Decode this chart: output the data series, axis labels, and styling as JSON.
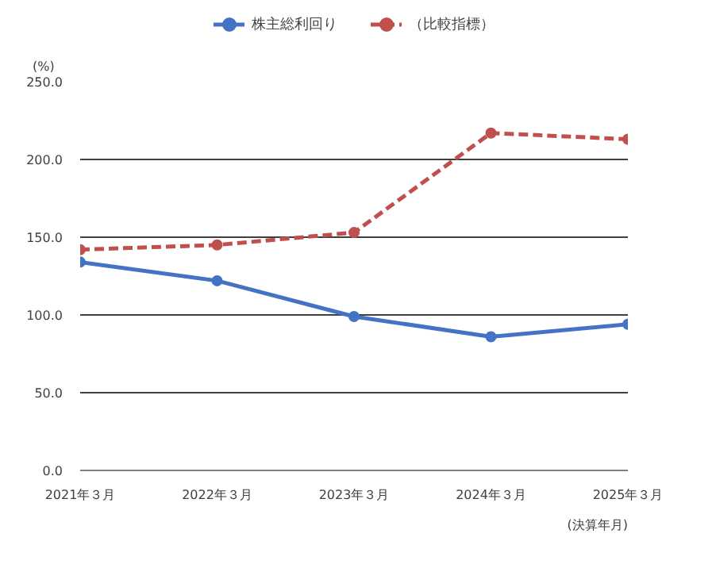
{
  "chart_data": {
    "type": "line",
    "ylabel": "(%)",
    "xlabel": "(決算年月)",
    "categories": [
      "2021年３月",
      "2022年３月",
      "2023年３月",
      "2024年３月",
      "2025年３月"
    ],
    "series": [
      {
        "name": "株主総利回り",
        "color": "#4472c4",
        "values": [
          134,
          122,
          99,
          86,
          94
        ],
        "line_style": "solid"
      },
      {
        "name": "（比較指標）",
        "color": "#c0504d",
        "values": [
          142,
          145,
          153,
          217,
          213
        ],
        "line_style": "dashed"
      }
    ],
    "ylim": [
      0,
      250
    ],
    "yticks": [
      {
        "value": 0,
        "label": "0.0"
      },
      {
        "value": 50,
        "label": "50.0"
      },
      {
        "value": 100,
        "label": "100.0"
      },
      {
        "value": 150,
        "label": "150.0"
      },
      {
        "value": 200,
        "label": "200.0"
      },
      {
        "value": 250,
        "label": "250.0"
      }
    ],
    "grid": "y",
    "legend": "top",
    "marker": "circle"
  }
}
